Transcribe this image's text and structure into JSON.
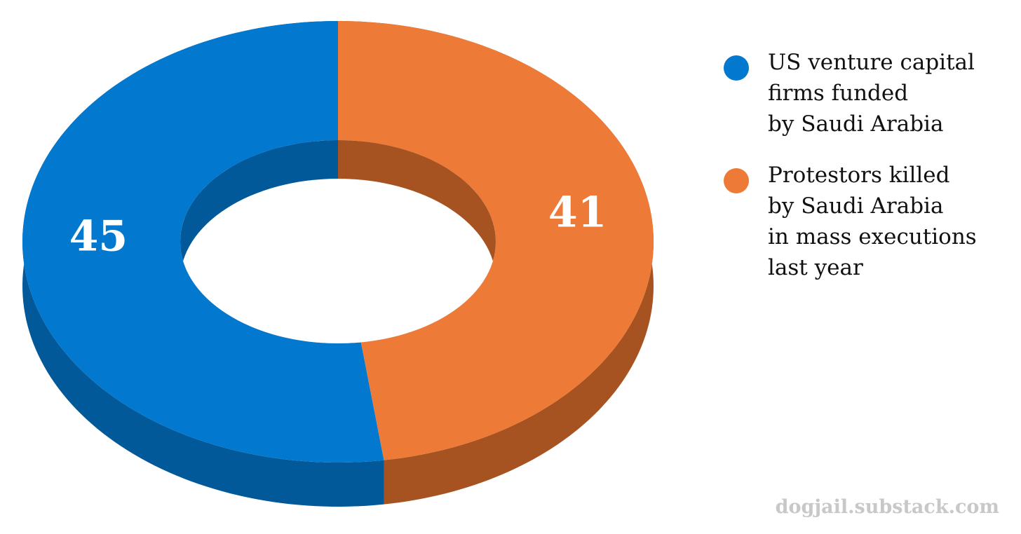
{
  "chart_data": {
    "type": "donut",
    "categories": [
      "US venture capital\nfirms funded\nby Saudi Arabia",
      "Protestors killed\nby Saudi Arabia\nin mass executions\nlast year"
    ],
    "values": [
      45,
      41
    ],
    "colors": [
      "#0278cf",
      "#ee7a38"
    ],
    "side_colors": [
      "#02599a",
      "#a65321"
    ],
    "legend": "right",
    "watermark": "dogjail.substack.com"
  }
}
